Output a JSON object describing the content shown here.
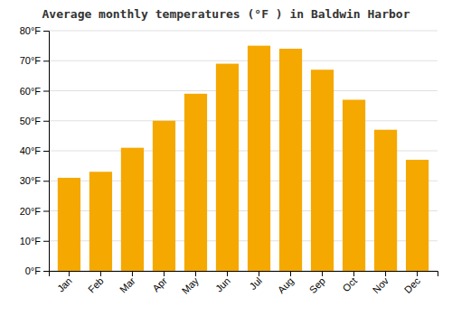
{
  "chart_data": {
    "type": "bar",
    "title": "Average monthly temperatures (°F ) in Baldwin Harbor",
    "categories": [
      "Jan",
      "Feb",
      "Mar",
      "Apr",
      "May",
      "Jun",
      "Jul",
      "Aug",
      "Sep",
      "Oct",
      "Nov",
      "Dec"
    ],
    "values": [
      31,
      33,
      41,
      50,
      59,
      69,
      75,
      74,
      67,
      57,
      47,
      37
    ],
    "color": "#F5A800",
    "ylim": [
      0,
      80
    ],
    "yticks": [
      {
        "value": 0,
        "label": "0°F"
      },
      {
        "value": 10,
        "label": "10°F"
      },
      {
        "value": 20,
        "label": "20°F"
      },
      {
        "value": 30,
        "label": "30°F"
      },
      {
        "value": 40,
        "label": "40°F"
      },
      {
        "value": 50,
        "label": "50°F"
      },
      {
        "value": 60,
        "label": "60°F"
      },
      {
        "value": 70,
        "label": "70°F"
      },
      {
        "value": 80,
        "label": "80°F"
      }
    ],
    "grid": true
  }
}
